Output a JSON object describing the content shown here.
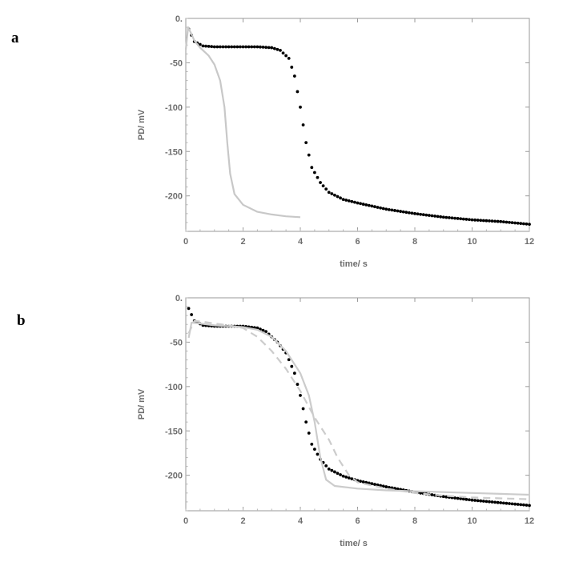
{
  "chart_data": [
    {
      "panel": "a",
      "type": "scatter",
      "xlabel": "time/ s",
      "ylabel": "PD/ mV",
      "xlim": [
        0,
        12
      ],
      "ylim": [
        -240,
        0
      ],
      "xticks": [
        0,
        2,
        4,
        6,
        8,
        10,
        12
      ],
      "yticks": [
        0,
        -50,
        -100,
        -150,
        -200
      ],
      "grid": false,
      "series": [
        {
          "style": "dots",
          "color": "#000000",
          "points": [
            [
              0.1,
              -12
            ],
            [
              0.3,
              -26
            ],
            [
              0.6,
              -31
            ],
            [
              1,
              -32
            ],
            [
              1.5,
              -32
            ],
            [
              2,
              -32
            ],
            [
              2.5,
              -32
            ],
            [
              3,
              -33
            ],
            [
              3.3,
              -36
            ],
            [
              3.6,
              -45
            ],
            [
              3.8,
              -65
            ],
            [
              4,
              -100
            ],
            [
              4.2,
              -140
            ],
            [
              4.4,
              -168
            ],
            [
              4.7,
              -185
            ],
            [
              5,
              -196
            ],
            [
              5.5,
              -204
            ],
            [
              6,
              -208
            ],
            [
              7,
              -215
            ],
            [
              8,
              -220
            ],
            [
              9,
              -224
            ],
            [
              10,
              -227
            ],
            [
              11,
              -229
            ],
            [
              12,
              -232
            ]
          ]
        },
        {
          "style": "solid",
          "color": "#c8c8c8",
          "points": [
            [
              0,
              -35
            ],
            [
              0.08,
              -10
            ],
            [
              0.2,
              -18
            ],
            [
              0.3,
              -25
            ],
            [
              0.5,
              -33
            ],
            [
              0.8,
              -42
            ],
            [
              1,
              -52
            ],
            [
              1.2,
              -70
            ],
            [
              1.35,
              -100
            ],
            [
              1.45,
              -140
            ],
            [
              1.55,
              -175
            ],
            [
              1.7,
              -198
            ],
            [
              2,
              -210
            ],
            [
              2.5,
              -218
            ],
            [
              3,
              -221
            ],
            [
              3.5,
              -223
            ],
            [
              4,
              -224
            ]
          ]
        }
      ]
    },
    {
      "panel": "b",
      "type": "scatter",
      "xlabel": "time/ s",
      "ylabel": "PD/ mV",
      "xlim": [
        0,
        12
      ],
      "ylim": [
        -240,
        0
      ],
      "xticks": [
        0,
        2,
        4,
        6,
        8,
        10,
        12
      ],
      "yticks": [
        0,
        -50,
        -100,
        -150,
        -200
      ],
      "grid": false,
      "series": [
        {
          "style": "dots",
          "color": "#000000",
          "points": [
            [
              0.1,
              -12
            ],
            [
              0.3,
              -26
            ],
            [
              0.6,
              -31
            ],
            [
              1,
              -32
            ],
            [
              1.5,
              -32
            ],
            [
              2,
              -32
            ],
            [
              2.5,
              -34
            ],
            [
              2.8,
              -38
            ],
            [
              3.2,
              -50
            ],
            [
              3.5,
              -62
            ],
            [
              3.8,
              -85
            ],
            [
              4,
              -110
            ],
            [
              4.2,
              -140
            ],
            [
              4.4,
              -165
            ],
            [
              4.7,
              -182
            ],
            [
              5,
              -193
            ],
            [
              5.5,
              -201
            ],
            [
              6,
              -206
            ],
            [
              7,
              -213
            ],
            [
              8,
              -219
            ],
            [
              9,
              -224
            ],
            [
              10,
              -228
            ],
            [
              11,
              -231
            ],
            [
              12,
              -234
            ]
          ]
        },
        {
          "style": "solid",
          "color": "#cccccc",
          "points": [
            [
              0.1,
              -45
            ],
            [
              0.2,
              -28
            ],
            [
              0.5,
              -29
            ],
            [
              1,
              -31
            ],
            [
              1.5,
              -32
            ],
            [
              2,
              -33
            ],
            [
              2.5,
              -36
            ],
            [
              3,
              -44
            ],
            [
              3.5,
              -60
            ],
            [
              4,
              -85
            ],
            [
              4.3,
              -110
            ],
            [
              4.5,
              -140
            ],
            [
              4.7,
              -180
            ],
            [
              4.9,
              -205
            ],
            [
              5.2,
              -212
            ],
            [
              6,
              -215
            ],
            [
              7,
              -217
            ],
            [
              8,
              -218
            ],
            [
              9,
              -219
            ],
            [
              10,
              -220
            ],
            [
              11,
              -221
            ],
            [
              12,
              -222
            ]
          ]
        },
        {
          "style": "dashed",
          "color": "#cccccc",
          "points": [
            [
              0.1,
              -40
            ],
            [
              0.3,
              -26
            ],
            [
              0.6,
              -27
            ],
            [
              1,
              -29
            ],
            [
              1.5,
              -31
            ],
            [
              2,
              -34
            ],
            [
              2.5,
              -44
            ],
            [
              3,
              -60
            ],
            [
              3.5,
              -80
            ],
            [
              4,
              -105
            ],
            [
              4.5,
              -135
            ],
            [
              5,
              -160
            ],
            [
              5.3,
              -180
            ],
            [
              5.7,
              -200
            ],
            [
              6,
              -208
            ],
            [
              7,
              -215
            ],
            [
              8,
              -220
            ],
            [
              9,
              -223
            ],
            [
              10,
              -225
            ],
            [
              11,
              -226
            ],
            [
              12,
              -227
            ]
          ]
        }
      ]
    }
  ]
}
